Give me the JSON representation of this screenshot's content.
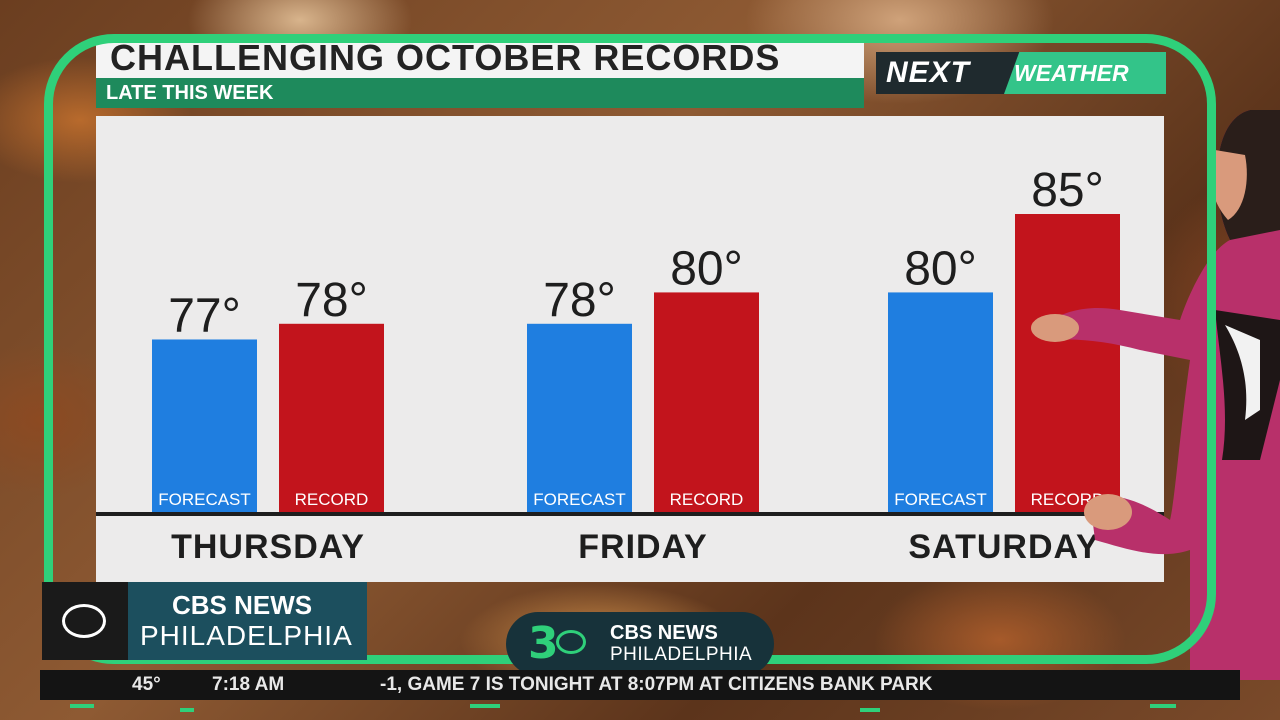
{
  "header": {
    "title": "CHALLENGING OCTOBER RECORDS",
    "subtitle": "LATE THIS WEEK"
  },
  "brand": {
    "next": "NEXT",
    "weather": "WEATHER"
  },
  "colors": {
    "forecast": "#1f7ee0",
    "record": "#c2141c",
    "frame": "#2fd07a",
    "subtitle_bar": "#1e8a5c"
  },
  "chart_data": {
    "type": "bar",
    "categories": [
      "THURSDAY",
      "FRIDAY",
      "SATURDAY"
    ],
    "series": [
      {
        "name": "FORECAST",
        "values": [
          77,
          78,
          80
        ]
      },
      {
        "name": "RECORD",
        "values": [
          78,
          80,
          85
        ]
      }
    ],
    "value_labels": [
      [
        "77°",
        "78°",
        "80°"
      ],
      [
        "78°",
        "80°",
        "85°"
      ]
    ],
    "title": "CHALLENGING OCTOBER RECORDS",
    "subtitle": "LATE THIS WEEK",
    "grid": false,
    "legend": "labels inside bars"
  },
  "logos": {
    "left_network": "CBS NEWS",
    "left_city": "PHILADELPHIA",
    "pill_number": "3",
    "pill_network": "CBS NEWS",
    "pill_city": "PHILADELPHIA"
  },
  "ticker": {
    "temp": "45°",
    "time": "7:18 AM",
    "headline": "-1, GAME 7 IS TONIGHT AT 8:07PM AT CITIZENS BANK PARK"
  }
}
